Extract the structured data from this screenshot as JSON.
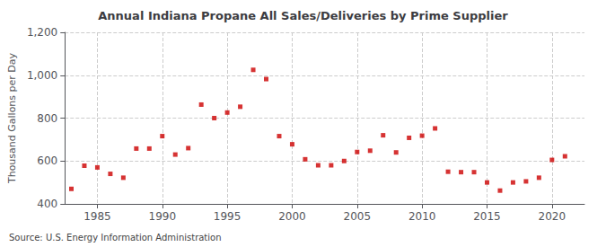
{
  "chart_data": {
    "type": "scatter",
    "title": "Annual Indiana Propane All Sales/Deliveries by Prime Supplier",
    "ylabel": "Thousand Gallons per Day",
    "source": "Source: U.S. Energy Information Administration",
    "x": [
      1983,
      1984,
      1985,
      1986,
      1987,
      1988,
      1989,
      1990,
      1991,
      1992,
      1993,
      1994,
      1995,
      1996,
      1997,
      1998,
      1999,
      2000,
      2001,
      2002,
      2003,
      2004,
      2005,
      2006,
      2007,
      2008,
      2009,
      2010,
      2011,
      2012,
      2013,
      2014,
      2015,
      2016,
      2017,
      2018,
      2019,
      2020,
      2021
    ],
    "values": [
      470,
      578,
      570,
      540,
      522,
      658,
      658,
      716,
      630,
      660,
      863,
      800,
      826,
      853,
      1025,
      982,
      716,
      678,
      608,
      580,
      580,
      600,
      642,
      648,
      720,
      640,
      708,
      718,
      752,
      550,
      548,
      548,
      500,
      462,
      500,
      505,
      522,
      605,
      622
    ],
    "color": "#cc0000",
    "marker": "square",
    "xlim": [
      1982.5,
      2022.5
    ],
    "xticks": [
      1985,
      1990,
      1995,
      2000,
      2005,
      2010,
      2015,
      2020
    ],
    "ylim": [
      400,
      1200
    ],
    "yticks": [
      400,
      600,
      800,
      {
        "value": 1000,
        "label": "1,000"
      },
      {
        "value": 1200,
        "label": "1,200"
      }
    ],
    "grid": true
  }
}
